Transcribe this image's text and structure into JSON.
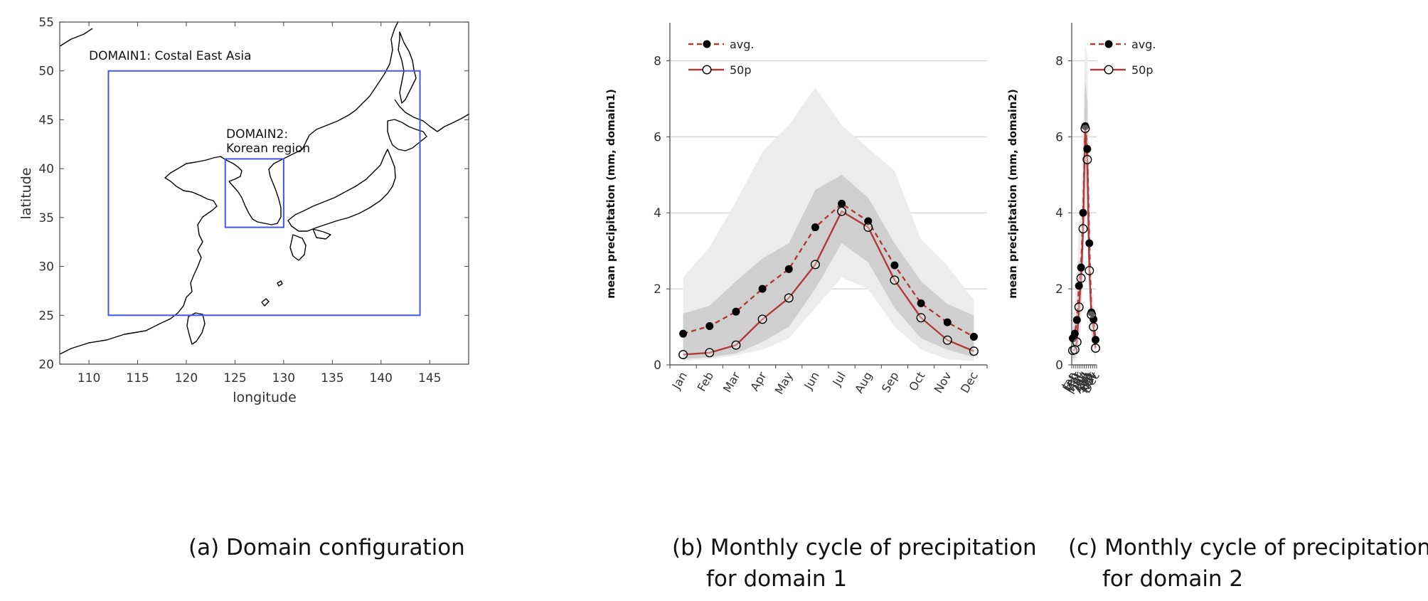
{
  "captions": {
    "a": "(a) Domain configuration",
    "b": [
      "(b) Monthly cycle of precipitation",
      "for domain 1"
    ],
    "c": [
      "(c) Monthly cycle of precipitation",
      "for domain 2"
    ]
  },
  "map": {
    "xlabel": "longitude",
    "ylabel": "latitude",
    "xlim": [
      107,
      149
    ],
    "ylim": [
      20,
      55
    ],
    "xticks": [
      "110",
      "115",
      "120",
      "125",
      "130",
      "135",
      "140",
      "145"
    ],
    "yticks": [
      "20",
      "25",
      "30",
      "35",
      "40",
      "45",
      "50",
      "55"
    ],
    "domain1": {
      "label": "DOMAIN1: Costal East Asia",
      "lon": [
        112,
        144
      ],
      "lat": [
        25,
        50
      ]
    },
    "domain2": {
      "label_line1": "DOMAIN2:",
      "label_line2": "Korean region",
      "lon": [
        124,
        130
      ],
      "lat": [
        34,
        41
      ]
    },
    "box_color": "#4455ee"
  },
  "chart_data": [
    {
      "type": "line",
      "ylabel": "mean precipitation  (mm, domain1)",
      "ylim": [
        0,
        9
      ],
      "yticks": [
        "0",
        "2",
        "4",
        "6",
        "8"
      ],
      "categories": [
        "Jan",
        "Feb",
        "Mar",
        "Apr",
        "May",
        "Jun",
        "Jul",
        "Aug",
        "Sep",
        "Oct",
        "Nov",
        "Dec"
      ],
      "grid": true,
      "legend_position": "top-left",
      "series": [
        {
          "name": "avg.",
          "style": "dashed",
          "marker": "filled-circle",
          "color": "#b03a3a",
          "values": [
            0.82,
            1.02,
            1.4,
            2.0,
            2.52,
            3.62,
            4.24,
            3.78,
            2.62,
            1.62,
            1.12,
            0.74
          ]
        },
        {
          "name": "50p",
          "style": "solid",
          "marker": "open-circle",
          "color": "#b03a3a",
          "values": [
            0.27,
            0.32,
            0.52,
            1.2,
            1.76,
            2.64,
            4.04,
            3.62,
            2.23,
            1.24,
            0.65,
            0.36
          ]
        }
      ],
      "bands": [
        {
          "shade": "light",
          "lower": [
            0.1,
            0.15,
            0.25,
            0.4,
            0.7,
            1.5,
            2.3,
            2.0,
            1.0,
            0.4,
            0.15,
            0.1
          ],
          "upper": [
            2.3,
            3.1,
            4.3,
            5.6,
            6.3,
            7.3,
            6.3,
            5.7,
            5.1,
            3.3,
            2.6,
            1.7
          ]
        },
        {
          "shade": "dark",
          "lower": [
            0.15,
            0.2,
            0.3,
            0.6,
            1.0,
            2.0,
            3.2,
            2.7,
            1.5,
            0.7,
            0.4,
            0.2
          ],
          "upper": [
            1.35,
            1.55,
            2.2,
            2.8,
            3.2,
            4.6,
            5.0,
            4.4,
            3.2,
            2.2,
            1.6,
            1.3
          ]
        }
      ]
    },
    {
      "type": "line",
      "ylabel": "mean precipitation  (mm, domain2)",
      "ylim": [
        0,
        9
      ],
      "yticks": [
        "0",
        "2",
        "4",
        "6",
        "8"
      ],
      "categories": [
        "Jan",
        "Feb",
        "Mar",
        "Apr",
        "May",
        "Jun",
        "Jul",
        "Aug",
        "Sep",
        "Oct",
        "Nov",
        "Dec"
      ],
      "grid": true,
      "legend_position": "top-left",
      "series": [
        {
          "name": "avg.",
          "style": "dashed",
          "marker": "filled-circle",
          "color": "#b03a3a",
          "values": [
            0.7,
            0.82,
            1.18,
            2.08,
            2.56,
            4.0,
            6.28,
            5.68,
            3.2,
            1.38,
            1.2,
            0.66
          ]
        },
        {
          "name": "50p",
          "style": "solid",
          "marker": "open-circle",
          "color": "#b03a3a",
          "values": [
            0.38,
            0.4,
            0.6,
            1.52,
            2.28,
            3.58,
            6.22,
            5.4,
            2.48,
            1.32,
            1.0,
            0.44
          ]
        }
      ],
      "bands": [
        {
          "shade": "light",
          "lower": [
            0.05,
            0.1,
            0.2,
            0.6,
            1.0,
            2.3,
            3.9,
            3.4,
            1.9,
            0.6,
            0.3,
            0.1
          ],
          "upper": [
            1.25,
            1.7,
            2.4,
            3.7,
            4.0,
            6.4,
            8.5,
            8.1,
            5.0,
            1.85,
            1.85,
            0.85
          ]
        },
        {
          "shade": "dark",
          "lower": [
            0.15,
            0.2,
            0.35,
            1.0,
            1.5,
            2.8,
            5.2,
            4.4,
            2.2,
            0.9,
            0.6,
            0.25
          ],
          "upper": [
            0.95,
            1.1,
            1.5,
            2.7,
            2.9,
            4.7,
            7.5,
            6.9,
            4.0,
            1.5,
            1.45,
            0.75
          ]
        }
      ]
    }
  ]
}
